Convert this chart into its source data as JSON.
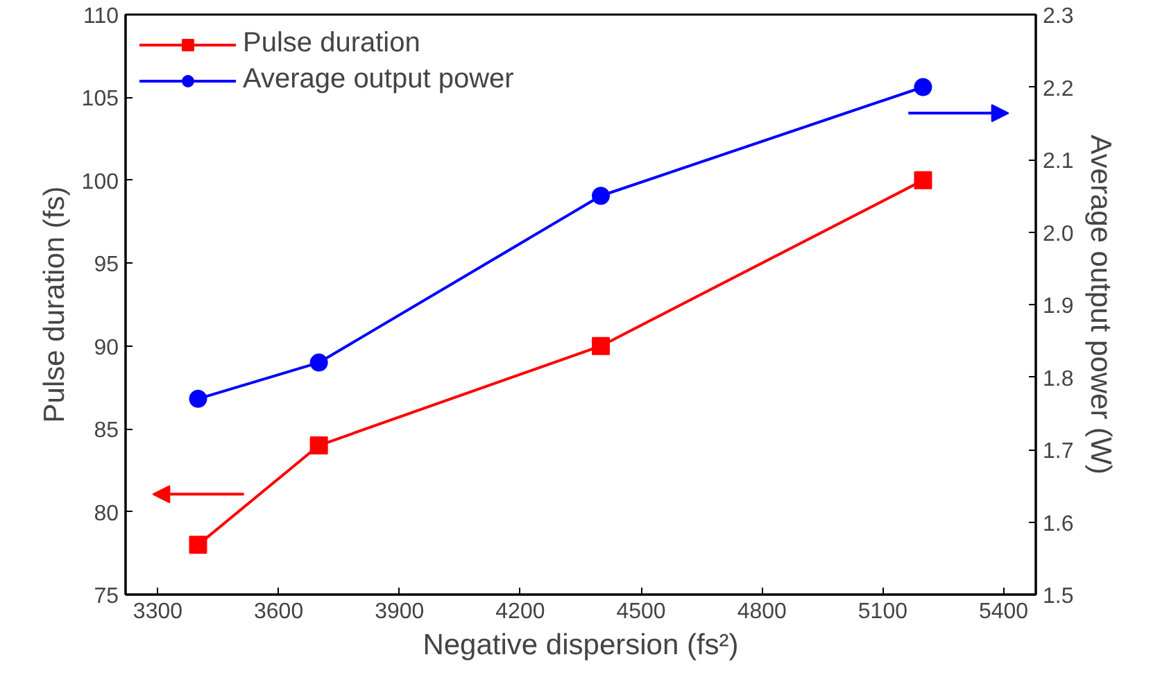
{
  "chart_data": {
    "type": "line",
    "xlabel": "Negative dispersion (fs²)",
    "ylabel": "Pulse duration (fs)",
    "y2label": "Average output power (W)",
    "x": [
      3400,
      3700,
      4400,
      5200
    ],
    "series": [
      {
        "name": "Pulse duration",
        "color": "#ff0000",
        "values": [
          78,
          84,
          90,
          100
        ],
        "marker": "square"
      },
      {
        "name": "Average output power",
        "color": "#0000ff",
        "values": [
          1.77,
          1.82,
          2.05,
          2.2
        ],
        "marker": "circle",
        "axis": "y2"
      }
    ],
    "xlim": [
      3220,
      5480
    ],
    "xticks": [
      3300,
      3600,
      3900,
      4200,
      4500,
      4800,
      5100,
      5400
    ],
    "ylim": [
      75,
      110
    ],
    "yticks": [
      75,
      80,
      85,
      90,
      95,
      100,
      105,
      110
    ],
    "y2lim": [
      1.5,
      2.3
    ],
    "y2ticks": [
      {
        "value": 1.5,
        "label": "1.5"
      },
      {
        "value": 1.6,
        "label": "1.6"
      },
      {
        "value": 1.7,
        "label": "1.7"
      },
      {
        "value": 1.8,
        "label": "1.8"
      },
      {
        "value": 1.9,
        "label": "1.9"
      },
      {
        "value": 2.0,
        "label": "2.0"
      },
      {
        "value": 2.1,
        "label": "2.1"
      },
      {
        "value": 2.2,
        "label": "2.2"
      },
      {
        "value": 2.3,
        "label": "2.3"
      }
    ],
    "legend": "top left",
    "grid": false,
    "line_style": "solid"
  }
}
